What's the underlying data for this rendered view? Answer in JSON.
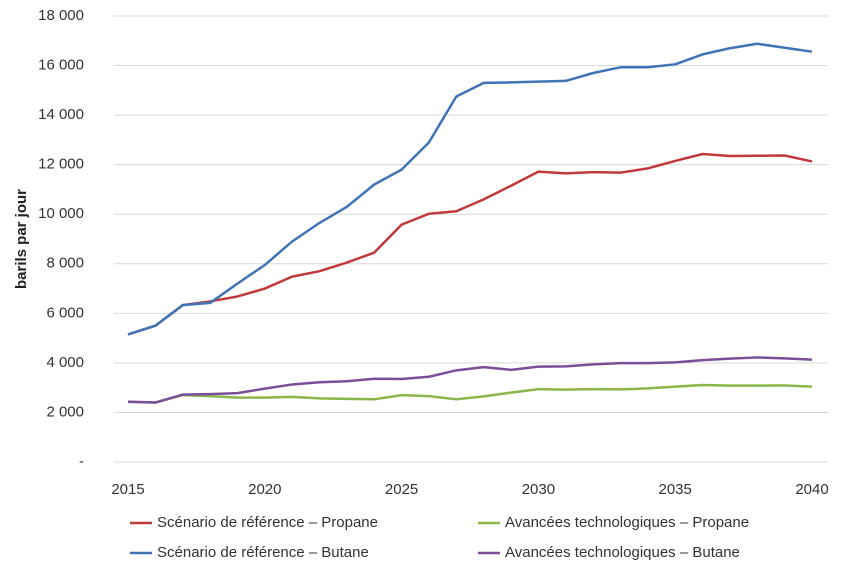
{
  "chart_data": {
    "type": "line",
    "y_label": "barils par jour",
    "x": [
      2015,
      2016,
      2017,
      2018,
      2019,
      2020,
      2021,
      2022,
      2023,
      2024,
      2025,
      2026,
      2027,
      2028,
      2029,
      2030,
      2031,
      2032,
      2033,
      2034,
      2035,
      2036,
      2037,
      2038,
      2039,
      2040
    ],
    "xlim": [
      2015,
      2040
    ],
    "xticks": [
      2015,
      2020,
      2025,
      2030,
      2035,
      2040
    ],
    "ylim": [
      0,
      18000
    ],
    "yticks": [
      {
        "value": 0,
        "label": "-"
      },
      {
        "value": 2000,
        "label": "2 000"
      },
      {
        "value": 4000,
        "label": "4 000"
      },
      {
        "value": 6000,
        "label": "6 000"
      },
      {
        "value": 8000,
        "label": "8 000"
      },
      {
        "value": 10000,
        "label": "10 000"
      },
      {
        "value": 12000,
        "label": "12 000"
      },
      {
        "value": 14000,
        "label": "14 000"
      },
      {
        "value": 16000,
        "label": "16 000"
      },
      {
        "value": 18000,
        "label": "18 000"
      }
    ],
    "grid": true,
    "series": [
      {
        "name": "Scénario de référence – Propane",
        "color": "#c0393b",
        "values": [
          5150,
          5500,
          6330,
          6480,
          6680,
          7000,
          7480,
          7700,
          8050,
          8450,
          9580,
          10020,
          10120,
          10600,
          11150,
          11720,
          11650,
          11700,
          11680,
          11850,
          12150,
          12430,
          12350,
          12360,
          12370,
          12130
        ]
      },
      {
        "name": "Avancées technologiques – Propane",
        "color": "#8db64a",
        "values": [
          2430,
          2400,
          2700,
          2660,
          2600,
          2600,
          2630,
          2570,
          2550,
          2530,
          2700,
          2660,
          2530,
          2650,
          2800,
          2940,
          2920,
          2940,
          2930,
          2970,
          3040,
          3110,
          3080,
          3080,
          3090,
          3040
        ]
      },
      {
        "name": "Scénario de référence – Butane",
        "color": "#3f73b5",
        "values": [
          5150,
          5500,
          6330,
          6420,
          7200,
          7950,
          8900,
          9650,
          10300,
          11200,
          11800,
          12900,
          14750,
          15300,
          15320,
          15350,
          15380,
          15700,
          15930,
          15930,
          16050,
          16450,
          16700,
          16880,
          16720,
          16560
        ]
      },
      {
        "name": "Avancées technologiques – Butane",
        "color": "#7a4f9a",
        "values": [
          2430,
          2400,
          2720,
          2740,
          2780,
          2960,
          3130,
          3220,
          3260,
          3360,
          3350,
          3440,
          3700,
          3830,
          3720,
          3850,
          3860,
          3940,
          3990,
          3990,
          4020,
          4110,
          4170,
          4220,
          4180,
          4130
        ]
      }
    ]
  }
}
